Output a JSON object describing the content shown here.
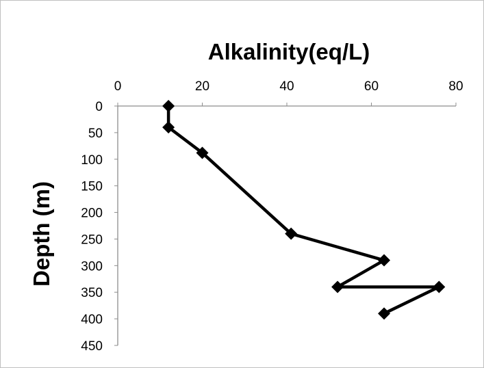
{
  "chart_data": {
    "type": "line",
    "title": "Alkalinity(eq/L)",
    "xlabel": "Alkalinity(eq/L)",
    "ylabel": "Depth (m)",
    "x_axis_position": "top",
    "y_axis_reversed": true,
    "xlim": [
      0,
      80
    ],
    "ylim": [
      0,
      450
    ],
    "x_ticks": [
      "0",
      "20",
      "40",
      "60",
      "80"
    ],
    "y_ticks": [
      "0",
      "50",
      "100",
      "150",
      "200",
      "250",
      "300",
      "350",
      "400",
      "450"
    ],
    "grid": false,
    "legend": "none",
    "marker": "diamond",
    "series": [
      {
        "color": "#000000",
        "points": [
          {
            "x": 12,
            "y": 0
          },
          {
            "x": 12,
            "y": 40
          },
          {
            "x": 20,
            "y": 88
          },
          {
            "x": 41,
            "y": 240
          },
          {
            "x": 63,
            "y": 290
          },
          {
            "x": 52,
            "y": 340
          },
          {
            "x": 76,
            "y": 340
          },
          {
            "x": 63,
            "y": 390
          }
        ]
      }
    ]
  }
}
